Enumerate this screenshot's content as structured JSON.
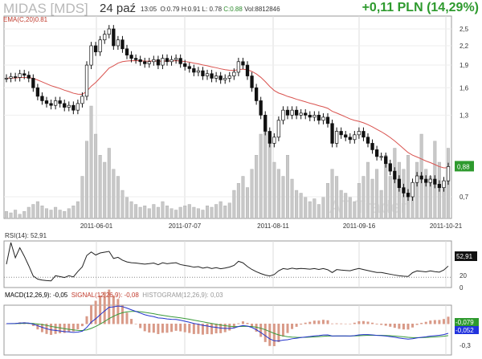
{
  "header": {
    "title": "MIDAS [MDS]",
    "date": "24 paź",
    "time": "13:05",
    "open": "O:0.79",
    "high": "H:0.91",
    "low": "L: 0.78",
    "close": "C:0.88",
    "volume": "Vol:8812846",
    "change": "+0,11 PLN (14,29%)"
  },
  "colors": {
    "up": "#ffffff",
    "down": "#111111",
    "ema": "#d9534f",
    "volume": "#c8c8c8",
    "macd": "#2233cc",
    "signal": "#3a9a3a",
    "histogram": "#d99a88",
    "positive": "#2e9a2e"
  },
  "chart_data": {
    "type": "candlestick",
    "title": "MIDAS [MDS]",
    "ema_label": "EMA(C,20)0.81",
    "y_ticks": [
      "2,5",
      "2,2",
      "1,9",
      "1,6",
      "1,3",
      "0,7"
    ],
    "y_tick_values": [
      2.5,
      2.2,
      1.9,
      1.6,
      1.3,
      0.7
    ],
    "last_price_label": "0,88",
    "ylim": [
      0.62,
      2.75
    ],
    "y_scale": "log",
    "x_ticks": [
      "2011-06-01",
      "2011-07-07",
      "2011-08-11",
      "2011-09-16",
      "2011-10-21"
    ],
    "x_tick_index": [
      20,
      40,
      60,
      80,
      99
    ],
    "close": [
      1.72,
      1.74,
      1.73,
      1.78,
      1.76,
      1.72,
      1.6,
      1.5,
      1.45,
      1.42,
      1.4,
      1.45,
      1.42,
      1.38,
      1.4,
      1.35,
      1.42,
      1.5,
      1.9,
      2.2,
      2.1,
      2.3,
      2.4,
      2.5,
      2.2,
      2.3,
      2.15,
      2.05,
      2.0,
      1.98,
      1.95,
      1.92,
      1.95,
      1.98,
      1.9,
      2.0,
      1.95,
      1.98,
      2.0,
      1.92,
      1.88,
      1.85,
      1.8,
      1.82,
      1.75,
      1.78,
      1.72,
      1.75,
      1.7,
      1.72,
      1.75,
      1.8,
      1.95,
      1.9,
      1.75,
      1.6,
      1.45,
      1.3,
      1.15,
      1.05,
      1.1,
      1.25,
      1.35,
      1.3,
      1.35,
      1.3,
      1.32,
      1.3,
      1.28,
      1.3,
      1.25,
      1.28,
      1.22,
      1.05,
      1.15,
      1.12,
      1.1,
      1.08,
      1.12,
      1.15,
      1.1,
      1.05,
      1.0,
      0.95,
      0.95,
      0.9,
      0.85,
      0.8,
      0.75,
      0.72,
      0.7,
      0.78,
      0.82,
      0.8,
      0.78,
      0.8,
      0.77,
      0.75,
      0.79,
      0.88
    ],
    "volume": [
      5,
      4,
      6,
      3,
      5,
      8,
      10,
      12,
      9,
      7,
      6,
      8,
      6,
      5,
      7,
      9,
      12,
      30,
      55,
      80,
      60,
      45,
      40,
      50,
      35,
      30,
      20,
      15,
      12,
      10,
      8,
      9,
      7,
      10,
      8,
      12,
      9,
      7,
      6,
      8,
      9,
      10,
      8,
      7,
      6,
      9,
      8,
      10,
      12,
      9,
      11,
      20,
      25,
      30,
      22,
      35,
      45,
      60,
      70,
      55,
      40,
      35,
      30,
      45,
      28,
      20,
      18,
      15,
      12,
      14,
      10,
      15,
      25,
      35,
      30,
      20,
      18,
      15,
      12,
      25,
      30,
      40,
      28,
      35,
      20,
      45,
      30,
      50,
      40,
      35,
      45,
      25,
      40,
      60,
      35,
      30,
      55,
      40,
      25,
      50
    ],
    "rsi": {
      "label": "RSI(14): 52,91",
      "value_label": "52,91",
      "ticks": [
        "20",
        "0"
      ],
      "level": 20
    },
    "macd": {
      "macd_label": "MACD(12,26,9): -0,05",
      "signal_label": "SIGNAL(12,26,9): -0,08",
      "histogram_label": "HISTOGRAM(12,26,9): 0,03",
      "signal_value_label": "-0,079",
      "macd_value_label": "-0,052",
      "tick": "-0,3"
    }
  },
  "watermark": "AT Trader"
}
